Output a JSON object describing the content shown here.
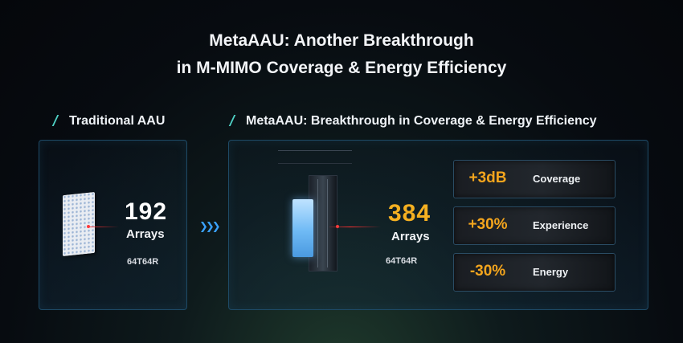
{
  "title": {
    "line1": "MetaAAU: Another Breakthrough",
    "line2": "in M-MIMO Coverage & Energy Efficiency"
  },
  "left_section": {
    "label": "Traditional AAU",
    "arrays_count": "192",
    "arrays_label": "Arrays",
    "config": "64T64R"
  },
  "right_section": {
    "label": "MetaAAU: Breakthrough in Coverage & Energy Efficiency",
    "arrays_count": "384",
    "arrays_label": "Arrays",
    "config": "64T64R"
  },
  "metrics": [
    {
      "value": "+3dB",
      "label": "Coverage"
    },
    {
      "value": "+30%",
      "label": "Experience"
    },
    {
      "value": "-30%",
      "label": "Energy"
    }
  ],
  "colors": {
    "accent_orange": "#f5b021",
    "panel_border": "#1e4a66",
    "arrow_blue": "#3aa2ff",
    "laser_red": "#ff3030"
  },
  "icons": {
    "arrow": "chevrons-right-icon"
  }
}
